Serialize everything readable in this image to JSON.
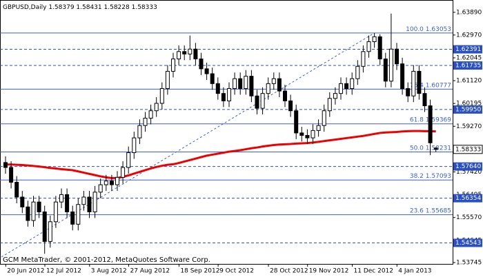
{
  "chart_data": {
    "type": "candlestick",
    "title": "GBPUSD,Daily",
    "ohlc_header": [
      1.58379,
      1.58431,
      1.58228,
      1.58333
    ],
    "source": "GCM MetaTrader, © 2001-2012, MetaQuotes Software Corp.",
    "categories": [
      null,
      null,
      null,
      "20 Jun 2012",
      null,
      null,
      null,
      null,
      null,
      null,
      "12 Jul 2012",
      null,
      null,
      null,
      null,
      null,
      null,
      null,
      "3 Aug 2012",
      null,
      null,
      null,
      null,
      null,
      null,
      "27 Aug 2012",
      null,
      null,
      null,
      null,
      null,
      null,
      null,
      null,
      "18 Sep 2012",
      null,
      null,
      null,
      null,
      null,
      null,
      "9 Oct 2012",
      null,
      null,
      null,
      null,
      null,
      null,
      null,
      null,
      "28 Oct 2012",
      null,
      null,
      null,
      null,
      null,
      null,
      "19 Nov 2012",
      null,
      null,
      null,
      null,
      null,
      null,
      null,
      "11 Dec 2012",
      null,
      null,
      null,
      null,
      null,
      null,
      null,
      "4 Jan 2013",
      null,
      null,
      null,
      null
    ],
    "open": [
      1.578,
      1.576,
      1.57,
      1.564,
      1.56,
      1.5545,
      1.562,
      1.558,
      1.546,
      1.554,
      1.562,
      1.565,
      1.558,
      1.553,
      1.561,
      1.564,
      1.558,
      1.566,
      1.569,
      1.5705,
      1.569,
      1.572,
      1.576,
      1.582,
      1.588,
      1.593,
      1.596,
      1.599,
      1.602,
      1.608,
      1.615,
      1.62,
      1.623,
      1.622,
      1.624,
      1.62,
      1.616,
      1.614,
      1.61,
      1.606,
      1.603,
      1.608,
      1.612,
      1.608,
      1.613,
      1.605,
      1.6,
      1.606,
      1.61,
      1.612,
      1.607,
      1.603,
      1.599,
      1.59,
      1.589,
      1.588,
      1.591,
      1.593,
      1.599,
      1.604,
      1.606,
      1.61,
      1.608,
      1.612,
      1.617,
      1.623,
      1.627,
      1.629,
      1.62,
      1.611,
      1.624,
      1.618,
      1.608,
      1.605,
      1.615,
      1.606,
      1.601,
      1.58379
    ],
    "high": [
      1.5805,
      1.5785,
      1.5725,
      1.5665,
      1.5625,
      1.5645,
      1.5645,
      1.5605,
      1.5565,
      1.5645,
      1.5675,
      1.5675,
      1.5605,
      1.5635,
      1.5665,
      1.5665,
      1.5685,
      1.5715,
      1.573,
      1.573,
      1.5745,
      1.5785,
      1.5845,
      1.5905,
      1.5955,
      1.5985,
      1.6015,
      1.6045,
      1.6105,
      1.6175,
      1.6225,
      1.6255,
      1.6255,
      1.6295,
      1.6265,
      1.6225,
      1.6185,
      1.6165,
      1.6125,
      1.6085,
      1.6105,
      1.6145,
      1.6145,
      1.6155,
      1.6155,
      1.6075,
      1.6085,
      1.6125,
      1.6145,
      1.6145,
      1.6095,
      1.6055,
      1.6015,
      1.5925,
      1.5915,
      1.5935,
      1.5955,
      1.6015,
      1.6065,
      1.6085,
      1.6125,
      1.6125,
      1.6145,
      1.6195,
      1.6255,
      1.6295,
      1.6305,
      1.63,
      1.6225,
      1.6384,
      1.6265,
      1.6205,
      1.6105,
      1.6175,
      1.6175,
      1.6085,
      1.6035,
      1.58431
    ],
    "low": [
      1.5735,
      1.5675,
      1.5615,
      1.5575,
      1.552,
      1.552,
      1.5555,
      1.541,
      1.5435,
      1.5515,
      1.5595,
      1.5555,
      1.5505,
      1.5505,
      1.5585,
      1.5555,
      1.5555,
      1.5635,
      1.5665,
      1.5665,
      1.5665,
      1.5695,
      1.5735,
      1.5795,
      1.5855,
      1.5905,
      1.5935,
      1.5965,
      1.5995,
      1.6055,
      1.6125,
      1.6175,
      1.6195,
      1.6195,
      1.6175,
      1.6135,
      1.6115,
      1.6075,
      1.6035,
      1.6005,
      1.6005,
      1.6055,
      1.6055,
      1.6055,
      1.6025,
      1.5975,
      1.5975,
      1.6035,
      1.6075,
      1.6045,
      1.6005,
      1.5965,
      1.5875,
      1.5865,
      1.5855,
      1.5855,
      1.5885,
      1.5905,
      1.5965,
      1.6015,
      1.6035,
      1.6055,
      1.6055,
      1.6095,
      1.6145,
      1.6205,
      1.6245,
      1.6175,
      1.6085,
      1.6085,
      1.6155,
      1.6055,
      1.6025,
      1.6025,
      1.6035,
      1.5985,
      1.581,
      1.58228
    ],
    "close": [
      1.576,
      1.57,
      1.564,
      1.56,
      1.5545,
      1.562,
      1.558,
      1.546,
      1.554,
      1.562,
      1.565,
      1.558,
      1.553,
      1.561,
      1.564,
      1.558,
      1.566,
      1.569,
      1.5705,
      1.569,
      1.572,
      1.576,
      1.582,
      1.588,
      1.593,
      1.596,
      1.599,
      1.602,
      1.608,
      1.615,
      1.62,
      1.623,
      1.622,
      1.624,
      1.62,
      1.616,
      1.614,
      1.61,
      1.606,
      1.603,
      1.608,
      1.612,
      1.608,
      1.613,
      1.605,
      1.6,
      1.606,
      1.61,
      1.612,
      1.607,
      1.603,
      1.599,
      1.59,
      1.589,
      1.588,
      1.591,
      1.593,
      1.599,
      1.604,
      1.606,
      1.61,
      1.608,
      1.612,
      1.617,
      1.623,
      1.627,
      1.629,
      1.62,
      1.611,
      1.624,
      1.618,
      1.608,
      1.605,
      1.615,
      1.606,
      1.601,
      1.586,
      1.58333
    ],
    "moving_average": {
      "color": "#ee0000",
      "values": [
        1.5772,
        1.5772,
        1.5771,
        1.577,
        1.5768,
        1.5766,
        1.5764,
        1.5761,
        1.5758,
        1.5756,
        1.5753,
        1.5751,
        1.5749,
        1.5744,
        1.5739,
        1.5734,
        1.5729,
        1.5724,
        1.572,
        1.5717,
        1.5717,
        1.5722,
        1.5728,
        1.5735,
        1.5742,
        1.5749,
        1.5756,
        1.5762,
        1.5767,
        1.5771,
        1.5773,
        1.5778,
        1.5784,
        1.579,
        1.5796,
        1.5802,
        1.5808,
        1.5812,
        1.5816,
        1.582,
        1.5824,
        1.5827,
        1.583,
        1.5834,
        1.5838,
        1.5841,
        1.5845,
        1.5848,
        1.5851,
        1.5853,
        1.5854,
        1.5855,
        1.5857,
        1.5858,
        1.5859,
        1.5861,
        1.5864,
        1.5867,
        1.587,
        1.5873,
        1.5876,
        1.5879,
        1.5882,
        1.5885,
        1.5888,
        1.5892,
        1.5896,
        1.59,
        1.5902,
        1.5903,
        1.5904,
        1.5906,
        1.5907,
        1.5908,
        1.5908,
        1.5907,
        1.5907,
        1.5906
      ]
    },
    "levels": [
      1.62391,
      1.61735,
      {
        "value": 1.5995,
        "label": "1.59950"
      },
      {
        "value": 1.5764,
        "label": "1.57640"
      },
      1.56354,
      1.54543
    ],
    "fib_levels": [
      {
        "ratio": "100.0",
        "price": 1.63053
      },
      {
        "ratio": "76.4",
        "price": 1.60777
      },
      {
        "ratio": "61.8",
        "price": 1.59369
      },
      {
        "ratio": "50.0",
        "price": 1.58231
      },
      {
        "ratio": "38.2",
        "price": 1.57093
      },
      {
        "ratio": "23.6",
        "price": 1.55685
      }
    ],
    "ylim": [
      1.5369,
      1.6439
    ],
    "yticks": [
      {
        "value": 1.6389,
        "label": "1.63890"
      },
      {
        "value": 1.6297,
        "label": "1.62970"
      },
      1.62045,
      {
        "value": 1.6112,
        "label": "1.61120"
      },
      1.60195,
      {
        "value": 1.5927,
        "label": "1.59270"
      },
      {
        "value": 1.5742,
        "label": "1.57420"
      },
      1.56495,
      {
        "value": 1.5557,
        "label": "1.55570"
      },
      1.54645,
      1.53745
    ]
  }
}
